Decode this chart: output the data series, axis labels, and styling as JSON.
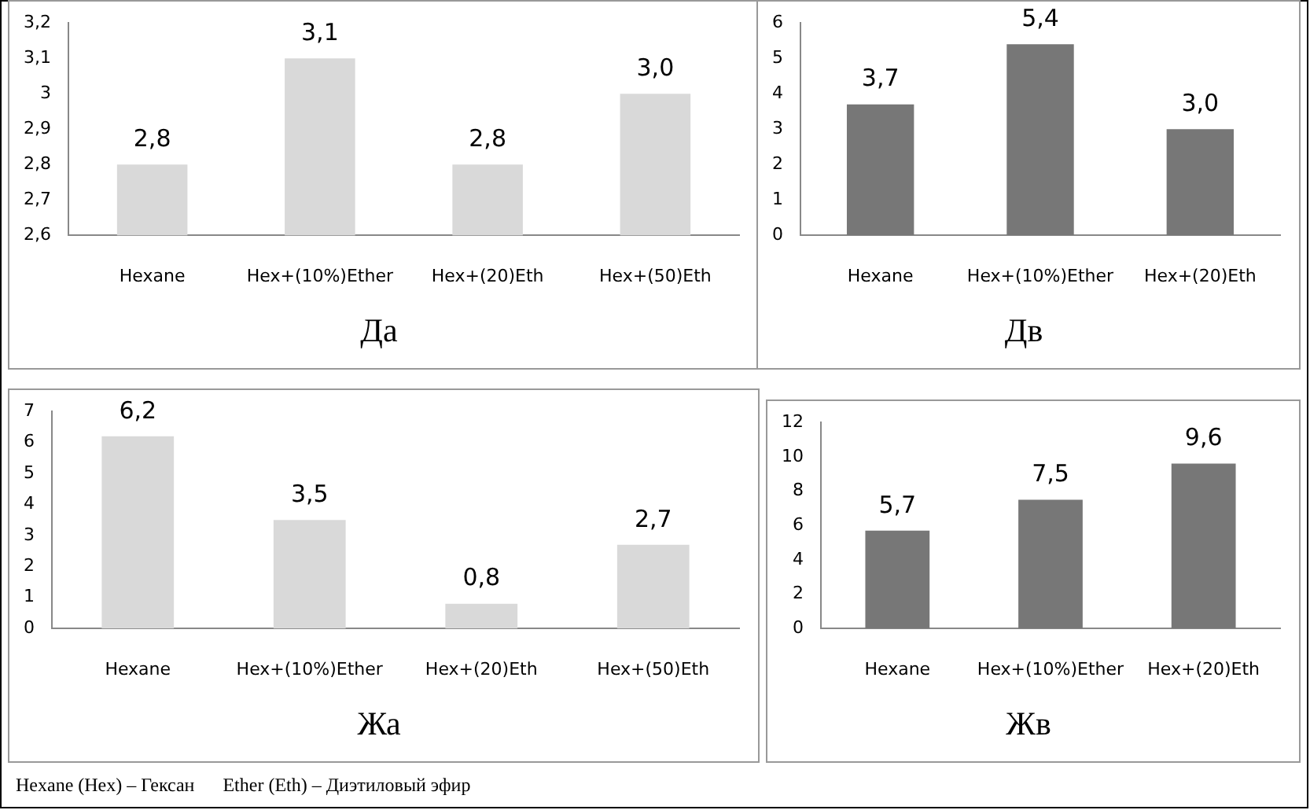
{
  "chart_data": [
    {
      "type": "bar",
      "title": "Да",
      "categories": [
        "Hexane",
        "Hex+(10%)Ether",
        "Hex+(20)Eth",
        "Hex+(50)Eth"
      ],
      "values": [
        2.8,
        3.1,
        2.8,
        3.0
      ],
      "value_labels": [
        "2,8",
        "3,1",
        "2,8",
        "3,0"
      ],
      "color": "#d9d9d9",
      "ylim": [
        2.6,
        3.2
      ],
      "yticks": [
        {
          "value": 2.6,
          "label": "2,6"
        },
        {
          "value": 2.7,
          "label": "2,7"
        },
        {
          "value": 2.8,
          "label": "2,8"
        },
        {
          "value": 2.9,
          "label": "2,9"
        },
        3,
        {
          "value": 3.1,
          "label": "3,1"
        },
        {
          "value": 3.2,
          "label": "3,2"
        }
      ]
    },
    {
      "type": "bar",
      "title": "Дв",
      "categories": [
        "Hexane",
        "Hex+(10%)Ether",
        "Hex+(20)Eth"
      ],
      "values": [
        3.7,
        5.4,
        3.0
      ],
      "value_labels": [
        "3,7",
        "5,4",
        "3,0"
      ],
      "color": "#777777",
      "ylim": [
        0,
        6
      ],
      "yticks": [
        0,
        1,
        2,
        3,
        4,
        5,
        6
      ]
    },
    {
      "type": "bar",
      "title": "Жа",
      "categories": [
        "Hexane",
        "Hex+(10%)Ether",
        "Hex+(20)Eth",
        "Hex+(50)Eth"
      ],
      "values": [
        6.2,
        3.5,
        0.8,
        2.7
      ],
      "value_labels": [
        "6,2",
        "3,5",
        "0,8",
        "2,7"
      ],
      "color": "#d9d9d9",
      "ylim": [
        0,
        7
      ],
      "yticks": [
        0,
        1,
        2,
        3,
        4,
        5,
        6,
        7
      ],
      "annotations": [
        "Hexane (Hex) – Гексан      Ether (Eth) – Диэтиловый эфир"
      ]
    },
    {
      "type": "bar",
      "title": "Жв",
      "categories": [
        "Hexane",
        "Hex+(10%)Ether",
        "Hex+(20)Eth"
      ],
      "values": [
        5.7,
        7.5,
        9.6
      ],
      "value_labels": [
        "5,7",
        "7,5",
        "9,6"
      ],
      "color": "#777777",
      "ylim": [
        0,
        12
      ],
      "yticks": [
        0,
        2,
        4,
        6,
        8,
        10,
        12
      ]
    }
  ]
}
